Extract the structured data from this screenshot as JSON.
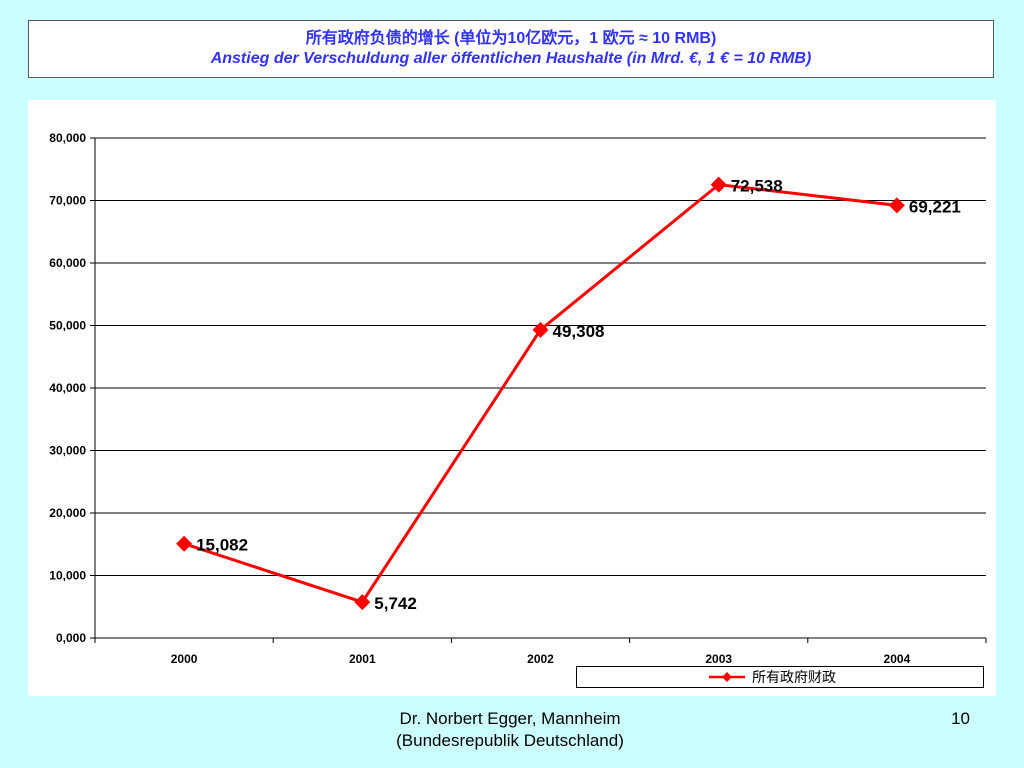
{
  "header": {
    "title_line1": "所有政府负债的增长 (单位为10亿欧元，1 欧元 ≈ 10 RMB)",
    "title_line2": "Anstieg der Verschuldung aller öffentlichen Haushalte   (in Mrd. €, 1 € = 10 RMB)",
    "title_color": "#3333ff"
  },
  "chart_data": {
    "type": "line",
    "categories": [
      "2000",
      "2001",
      "2002",
      "2003",
      "2004"
    ],
    "series": [
      {
        "name": "所有政府财政",
        "values": [
          15082,
          5742,
          49308,
          72538,
          69221
        ],
        "labels": [
          "15,082",
          "5,742",
          "49,308",
          "72,538",
          "69,221"
        ],
        "color": "#ff0000",
        "marker": "diamond"
      }
    ],
    "ylim": [
      0,
      80000
    ],
    "yticks": [
      0,
      10000,
      20000,
      30000,
      40000,
      50000,
      60000,
      70000,
      80000
    ],
    "ytick_labels": [
      "0,000",
      "10,000",
      "20,000",
      "30,000",
      "40,000",
      "50,000",
      "60,000",
      "70,000",
      "80,000"
    ],
    "grid": true,
    "legend_position": "bottom-right",
    "xlabel": "",
    "ylabel": ""
  },
  "footer": {
    "author_line1": "Dr. Norbert Egger, Mannheim",
    "author_line2": "(Bundesrepublik Deutschland)",
    "page_number": "10"
  },
  "colors": {
    "background": "#ccffff",
    "series": "#ff0000",
    "grid": "#000000"
  }
}
